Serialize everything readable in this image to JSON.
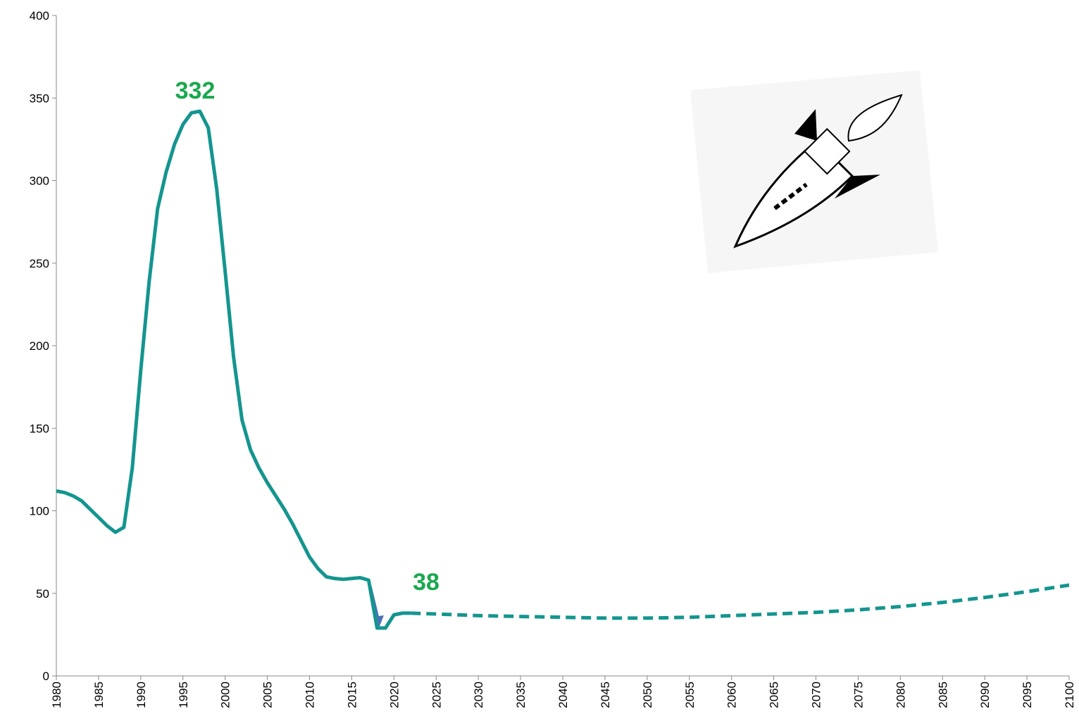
{
  "chart_data": {
    "type": "line",
    "xlim": [
      1980,
      2100
    ],
    "ylim": [
      0,
      400
    ],
    "xticks": [
      1980,
      1985,
      1990,
      1995,
      2000,
      2005,
      2010,
      2015,
      2020,
      2025,
      2030,
      2035,
      2040,
      2045,
      2050,
      2055,
      2060,
      2065,
      2070,
      2075,
      2080,
      2085,
      2090,
      2095,
      2100
    ],
    "yticks": [
      0,
      50,
      100,
      150,
      200,
      250,
      300,
      350,
      400
    ],
    "grid": false,
    "series": [
      {
        "color": "#14958f",
        "dashed": false,
        "x": [
          1980,
          1981,
          1982,
          1983,
          1984,
          1985,
          1986,
          1987,
          1988,
          1989,
          1990,
          1991,
          1992,
          1993,
          1994,
          1995,
          1996,
          1997,
          1998,
          1999,
          2000,
          2001,
          2002,
          2003,
          2004,
          2005,
          2006,
          2007,
          2008,
          2009,
          2010,
          2011,
          2012,
          2013,
          2014,
          2015,
          2016,
          2017,
          2018,
          2019,
          2020,
          2021,
          2022
        ],
        "values": [
          112,
          111,
          109,
          106,
          101,
          96,
          91,
          87,
          90,
          126,
          185,
          239,
          283,
          305,
          322,
          334,
          341,
          342,
          332,
          295,
          245,
          193,
          155,
          137,
          126,
          117,
          109,
          101,
          92,
          82,
          72,
          65,
          60,
          59,
          58.5,
          59,
          59.5,
          58,
          29,
          29,
          37,
          38,
          38
        ]
      },
      {
        "color": "#14958f",
        "dashed": true,
        "x": [
          2022,
          2025,
          2030,
          2035,
          2040,
          2045,
          2050,
          2055,
          2060,
          2065,
          2070,
          2075,
          2080,
          2085,
          2090,
          2095,
          2100
        ],
        "values": [
          38,
          37.5,
          36.5,
          36,
          35.5,
          35,
          35,
          35.5,
          36.5,
          37.5,
          38.5,
          40,
          42,
          44.5,
          47.5,
          51,
          55
        ]
      }
    ],
    "annotations": [
      "332",
      "38"
    ],
    "annotation_color": "#1aa84f"
  }
}
